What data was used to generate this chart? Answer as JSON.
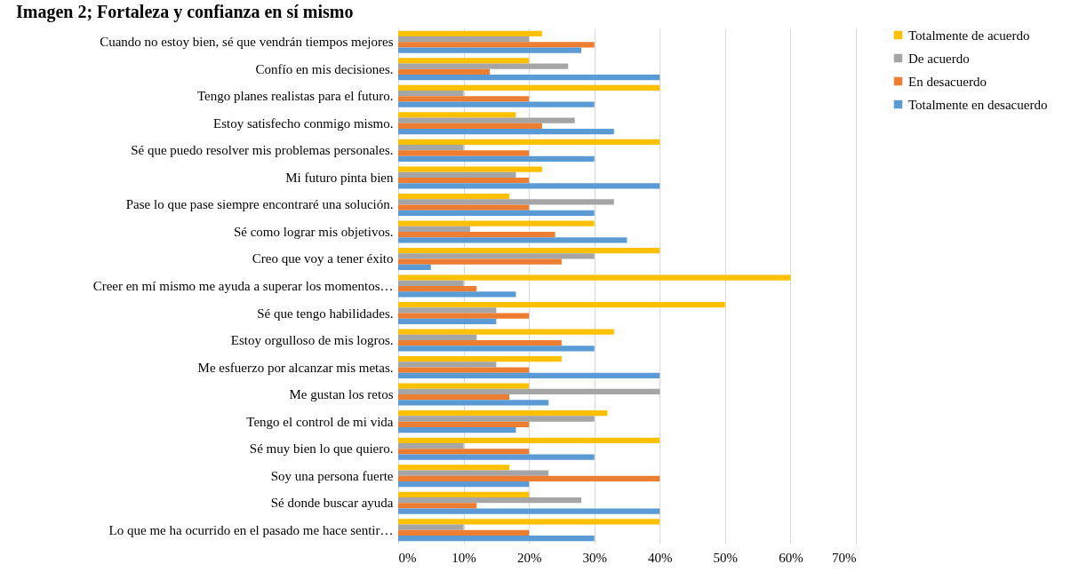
{
  "chart_data": {
    "type": "bar",
    "orientation": "horizontal",
    "title": "Imagen 2; Fortaleza y confianza en sí mismo",
    "categories": [
      "Cuando no estoy bien, sé que vendrán tiempos mejores",
      "Confío en mis decisiones.",
      "Tengo planes realistas para el futuro.",
      "Estoy satisfecho conmigo mismo.",
      "Sé que puedo resolver mis problemas personales.",
      "Mi futuro pinta bien",
      "Pase lo que pase siempre encontraré una solución.",
      "Sé como lograr mis objetivos.",
      "Creo que voy a tener éxito",
      "Creer en mí mismo me ayuda a superar los momentos…",
      "Sé que tengo habilidades.",
      "Estoy orgulloso de mis logros.",
      "Me esfuerzo por alcanzar mis metas.",
      "Me gustan los retos",
      "Tengo el control de mi vida",
      "Sé muy bien lo que quiero.",
      "Soy una persona fuerte",
      "Sé donde buscar ayuda",
      "Lo que me ha ocurrido en el pasado me hace sentir…"
    ],
    "series": [
      {
        "name": "Totalmente de acuerdo",
        "color": "#ffc000",
        "values": [
          22,
          20,
          40,
          18,
          40,
          22,
          17,
          30,
          40,
          60,
          50,
          33,
          25,
          20,
          32,
          40,
          17,
          20,
          40
        ]
      },
      {
        "name": "De acuerdo",
        "color": "#a5a5a5",
        "values": [
          20,
          26,
          10,
          27,
          10,
          18,
          33,
          11,
          30,
          10,
          15,
          12,
          15,
          40,
          30,
          10,
          23,
          28,
          10
        ]
      },
      {
        "name": "En desacuerdo",
        "color": "#ed7d31",
        "values": [
          30,
          14,
          20,
          22,
          20,
          20,
          20,
          24,
          25,
          12,
          20,
          25,
          20,
          17,
          20,
          20,
          40,
          12,
          20
        ]
      },
      {
        "name": "Totalmente en desacuerdo",
        "color": "#5b9bd5",
        "values": [
          28,
          40,
          30,
          33,
          30,
          40,
          30,
          35,
          5,
          18,
          15,
          30,
          40,
          23,
          18,
          30,
          20,
          40,
          30
        ]
      }
    ],
    "xlim": [
      0,
      70
    ],
    "xticks": [
      {
        "value": 0,
        "label": "0%"
      },
      {
        "value": 10,
        "label": "10%"
      },
      {
        "value": 20,
        "label": "20%"
      },
      {
        "value": 30,
        "label": "30%"
      },
      {
        "value": 40,
        "label": "40%"
      },
      {
        "value": 50,
        "label": "50%"
      },
      {
        "value": 60,
        "label": "60%"
      },
      {
        "value": 70,
        "label": "70%"
      }
    ],
    "grid": "x",
    "legend": "right"
  }
}
